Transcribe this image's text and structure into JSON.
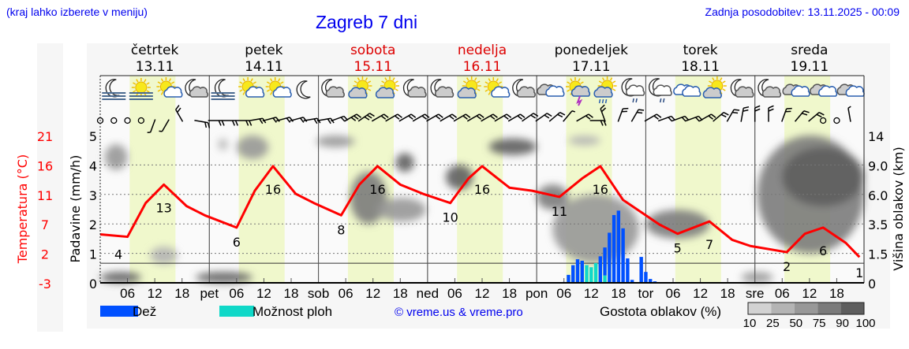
{
  "header": {
    "hint": "(kraj lahko izberete v meniju)",
    "title": "Zagreb 7 dni",
    "updated": "Zadnja posodobitev: 13.11.2025 - 00:09"
  },
  "days": [
    {
      "name": "četrtek",
      "date": "13.11",
      "weekend": false
    },
    {
      "name": "petek",
      "date": "14.11",
      "weekend": false
    },
    {
      "name": "sobota",
      "date": "15.11",
      "weekend": true
    },
    {
      "name": "nedelja",
      "date": "16.11",
      "weekend": true
    },
    {
      "name": "ponedeljek",
      "date": "17.11",
      "weekend": false
    },
    {
      "name": "torek",
      "date": "18.11",
      "weekend": false
    },
    {
      "name": "sreda",
      "date": "19.11",
      "weekend": false
    }
  ],
  "colors": {
    "rain": "#0050ff",
    "shower": "#10d8c8",
    "temperature": "#ff0000",
    "daylight": "#f0f8cc",
    "text_blue": "#0000ee",
    "weekend": "#dd0000"
  },
  "chart_data": {
    "type": "meteogram",
    "left_axis": {
      "label": "Temperatura (°C)",
      "ticks": [
        "21",
        "16",
        "11",
        "7",
        "2",
        "-3"
      ],
      "range": [
        -3,
        21
      ]
    },
    "precip_axis": {
      "label": "Padavine (mm/h)",
      "ticks": [
        "5",
        "4",
        "3",
        "2",
        "1",
        "0"
      ],
      "range": [
        0,
        5
      ]
    },
    "right_axis": {
      "label": "Višina oblakov (km)",
      "ticks": [
        "14",
        "9.0",
        "6.0",
        "3.5",
        "1.5",
        "0"
      ],
      "values": [
        14,
        9,
        6,
        3.5,
        1.5,
        0
      ]
    },
    "x_ticks": [
      "06",
      "12",
      "18",
      "pet",
      "06",
      "12",
      "18",
      "sob",
      "06",
      "12",
      "18",
      "ned",
      "06",
      "12",
      "18",
      "pon",
      "06",
      "12",
      "18",
      "tor",
      "06",
      "12",
      "18",
      "sre",
      "06",
      "12",
      "18"
    ],
    "temperature": [
      {
        "t": "13.11 00:00",
        "v": 4.9
      },
      {
        "t": "13.11 06:00",
        "v": 4.5
      },
      {
        "t": "13.11 10:00",
        "v": 10
      },
      {
        "t": "13.11 14:00",
        "v": 13
      },
      {
        "t": "13.11 19:00",
        "v": 9.5
      },
      {
        "t": "13.11 23:00",
        "v": 8
      },
      {
        "t": "14.11 06:00",
        "v": 6
      },
      {
        "t": "14.11 10:00",
        "v": 12
      },
      {
        "t": "14.11 14:00",
        "v": 16
      },
      {
        "t": "14.11 19:00",
        "v": 11.5
      },
      {
        "t": "14.11 23:00",
        "v": 10
      },
      {
        "t": "15.11 05:00",
        "v": 8
      },
      {
        "t": "15.11 09:00",
        "v": 13
      },
      {
        "t": "15.11 13:00",
        "v": 16
      },
      {
        "t": "15.11 18:00",
        "v": 13
      },
      {
        "t": "15.11 23:00",
        "v": 11.5
      },
      {
        "t": "16.11 05:00",
        "v": 10
      },
      {
        "t": "16.11 09:00",
        "v": 14
      },
      {
        "t": "16.11 12:00",
        "v": 16
      },
      {
        "t": "16.11 18:00",
        "v": 12.5
      },
      {
        "t": "16.11 23:00",
        "v": 12
      },
      {
        "t": "17.11 05:00",
        "v": 11
      },
      {
        "t": "17.11 10:00",
        "v": 14
      },
      {
        "t": "17.11 14:00",
        "v": 16
      },
      {
        "t": "17.11 19:00",
        "v": 10.5
      },
      {
        "t": "17.11 23:00",
        "v": 8.5
      },
      {
        "t": "18.11 03:00",
        "v": 6.5
      },
      {
        "t": "18.11 07:00",
        "v": 5
      },
      {
        "t": "18.11 14:00",
        "v": 7
      },
      {
        "t": "18.11 19:00",
        "v": 4
      },
      {
        "t": "18.11 23:00",
        "v": 3
      },
      {
        "t": "19.11 07:00",
        "v": 2
      },
      {
        "t": "19.11 11:00",
        "v": 5
      },
      {
        "t": "19.11 15:00",
        "v": 6
      },
      {
        "t": "19.11 20:00",
        "v": 3.5
      },
      {
        "t": "19.11 23:00",
        "v": 1.2
      }
    ],
    "temperature_labels": [
      {
        "t": "13.11 04:00",
        "text": "4"
      },
      {
        "t": "13.11 14:00",
        "text": "13"
      },
      {
        "t": "14.11 06:00",
        "text": "6"
      },
      {
        "t": "14.11 14:00",
        "text": "16"
      },
      {
        "t": "15.11 05:00",
        "text": "8"
      },
      {
        "t": "15.11 13:00",
        "text": "16"
      },
      {
        "t": "16.11 05:00",
        "text": "10"
      },
      {
        "t": "16.11 12:00",
        "text": "16"
      },
      {
        "t": "17.11 05:00",
        "text": "11"
      },
      {
        "t": "17.11 14:00",
        "text": "16"
      },
      {
        "t": "18.11 07:00",
        "text": "5"
      },
      {
        "t": "18.11 14:00",
        "text": "7"
      },
      {
        "t": "19.11 07:00",
        "text": "2"
      },
      {
        "t": "19.11 15:00",
        "text": "6"
      },
      {
        "t": "19.11 23:00",
        "text": "1"
      }
    ],
    "precipitation": [
      {
        "t": "17.11 06:00",
        "rain": 0.03,
        "shower": 0
      },
      {
        "t": "17.11 07:00",
        "rain": 0.27,
        "shower": 0
      },
      {
        "t": "17.11 08:00",
        "rain": 0.6,
        "shower": 0
      },
      {
        "t": "17.11 09:00",
        "rain": 0.8,
        "shower": 0
      },
      {
        "t": "17.11 10:00",
        "rain": 0.75,
        "shower": 0
      },
      {
        "t": "17.11 11:00",
        "rain": 0,
        "shower": 0.6
      },
      {
        "t": "17.11 12:00",
        "rain": 0,
        "shower": 0.53
      },
      {
        "t": "17.11 13:00",
        "rain": 0,
        "shower": 0.67
      },
      {
        "t": "17.11 14:00",
        "rain": 0.9,
        "shower": 0
      },
      {
        "t": "17.11 15:00",
        "rain": 0.95,
        "shower": 0.25
      },
      {
        "t": "17.11 16:00",
        "rain": 1.7,
        "shower": 0
      },
      {
        "t": "17.11 17:00",
        "rain": 2.3,
        "shower": 0
      },
      {
        "t": "17.11 18:00",
        "rain": 2.45,
        "shower": 0
      },
      {
        "t": "17.11 19:00",
        "rain": 1.85,
        "shower": 0
      },
      {
        "t": "17.11 20:00",
        "rain": 0.83,
        "shower": 0
      },
      {
        "t": "17.11 21:00",
        "rain": 0.1,
        "shower": 0
      },
      {
        "t": "17.11 23:00",
        "rain": 0.88,
        "shower": 0
      },
      {
        "t": "18.11 00:00",
        "rain": 0.37,
        "shower": 0
      },
      {
        "t": "18.11 01:00",
        "rain": 0.13,
        "shower": 0
      },
      {
        "t": "18.11 02:00",
        "rain": 0.05,
        "shower": 0
      }
    ],
    "cloud_density": [
      {
        "from": "13.11 00:00",
        "to": "13.11 09:00",
        "km": [
          0,
          0.55
        ],
        "pct": 90
      },
      {
        "from": "13.11 01:00",
        "to": "13.11 06:00",
        "km": [
          8.5,
          12.5
        ],
        "pct": 50
      },
      {
        "from": "13.11 11:00",
        "to": "13.11 17:00",
        "km": [
          0.95,
          1.95
        ],
        "pct": 25
      },
      {
        "from": "13.11 21:00",
        "to": "14.11 09:30",
        "km": [
          0,
          0.55
        ],
        "pct": 90
      },
      {
        "from": "14.11 06:00",
        "to": "14.11 13:00",
        "km": [
          10,
          14
        ],
        "pct": 50
      },
      {
        "from": "14.11 02:00",
        "to": "14.11 04:00",
        "km": [
          11.5,
          13.5
        ],
        "pct": 25
      },
      {
        "from": "14.11 23:30",
        "to": "15.11 08:00",
        "km": [
          12,
          14
        ],
        "pct": 50
      },
      {
        "from": "15.11 07:00",
        "to": "15.11 15:00",
        "km": [
          3.5,
          8.3
        ],
        "pct": 75
      },
      {
        "from": "15.11 13:00",
        "to": "15.11 23:40",
        "km": [
          3.7,
          5.7
        ],
        "pct": 50
      },
      {
        "from": "15.11 17:00",
        "to": "15.11 21:00",
        "km": [
          8.3,
          11
        ],
        "pct": 90
      },
      {
        "from": "16.11 04:00",
        "to": "16.11 10:00",
        "km": [
          6.5,
          9
        ],
        "pct": 90
      },
      {
        "from": "16.11 13:30",
        "to": "17.11 00:00",
        "km": [
          10.7,
          13.5
        ],
        "pct": 90
      },
      {
        "from": "17.11 03:30",
        "to": "17.11 22:30",
        "km": [
          1,
          6
        ],
        "pct": 50
      },
      {
        "from": "17.11 00:00",
        "to": "17.11 07:00",
        "km": [
          4.7,
          7
        ],
        "pct": 75
      },
      {
        "from": "17.11 07:00",
        "to": "17.11 14:00",
        "km": [
          12.5,
          13.8
        ],
        "pct": 25
      },
      {
        "from": "18.11 00:00",
        "to": "18.11 14:00",
        "km": [
          2.5,
          4.7
        ],
        "pct": 75
      },
      {
        "from": "18.11 21:00",
        "to": "19.11 04:00",
        "km": [
          0,
          0.55
        ],
        "pct": 50
      },
      {
        "from": "19.11 00:30",
        "to": "20.11 00:00",
        "km": [
          1.5,
          14
        ],
        "pct": 75
      },
      {
        "from": "19.11 06:00",
        "to": "20.11 00:00",
        "km": [
          5,
          12
        ],
        "pct": 90
      }
    ],
    "icons": [
      "moon-fog",
      "sun-fog",
      "sun-cloud",
      "moon-cloud",
      "moon-fog",
      "sun-cloud",
      "sun-cloud",
      "moon",
      "moon-cloud",
      "cloud-sun",
      "cloud-sun",
      "moon-cloud",
      "moon-cloud",
      "cloud-sun",
      "sun-cloud",
      "moon-cloud",
      "overcast",
      "sun-thunder",
      "sun-rain",
      "moon-rain",
      "moon-rain",
      "cloudy",
      "cloud-sun",
      "moon-cloud",
      "moon-cloud",
      "overcast",
      "overcast",
      "overcast"
    ],
    "wind": [
      [
        0,
        0
      ],
      [
        0,
        0
      ],
      [
        0,
        0
      ],
      [
        0,
        0
      ],
      [
        200,
        5
      ],
      [
        210,
        5
      ],
      [
        330,
        10
      ],
      [
        100,
        10
      ],
      [
        90,
        10
      ],
      [
        90,
        10
      ],
      [
        90,
        10
      ],
      [
        80,
        10
      ],
      [
        75,
        10
      ],
      [
        75,
        10
      ],
      [
        75,
        10
      ],
      [
        80,
        10
      ],
      [
        80,
        10
      ],
      [
        70,
        10
      ],
      [
        60,
        15
      ],
      [
        55,
        15
      ],
      [
        60,
        10
      ],
      [
        60,
        10
      ],
      [
        60,
        10
      ],
      [
        60,
        10
      ],
      [
        60,
        10
      ],
      [
        60,
        10
      ],
      [
        60,
        10
      ],
      [
        60,
        10
      ],
      [
        60,
        10
      ],
      [
        60,
        10
      ],
      [
        60,
        10
      ],
      [
        55,
        10
      ],
      [
        55,
        10
      ],
      [
        50,
        10
      ],
      [
        40,
        5
      ],
      [
        60,
        10
      ],
      [
        90,
        10
      ],
      [
        340,
        10
      ],
      [
        20,
        10
      ],
      [
        30,
        10
      ],
      [
        60,
        10
      ],
      [
        70,
        10
      ],
      [
        70,
        10
      ],
      [
        70,
        10
      ],
      [
        60,
        10
      ],
      [
        50,
        10
      ],
      [
        30,
        10
      ],
      [
        10,
        10
      ],
      [
        0,
        10
      ],
      [
        0,
        10
      ],
      [
        20,
        10
      ],
      [
        40,
        10
      ],
      [
        50,
        10
      ],
      [
        0,
        0
      ],
      [
        0,
        0
      ],
      [
        350,
        5
      ]
    ],
    "legend": {
      "rain": "Dež",
      "shower": "Možnost ploh",
      "credit": "© vreme.us & vreme.pro",
      "density_title": "Gostota oblakov (%)",
      "density_steps": [
        "10",
        "25",
        "50",
        "75",
        "90",
        "100"
      ],
      "density_colors": [
        "#d2d2d2",
        "#b4b4b4",
        "#989898",
        "#7b7b7b",
        "#5e5e5e"
      ]
    }
  }
}
